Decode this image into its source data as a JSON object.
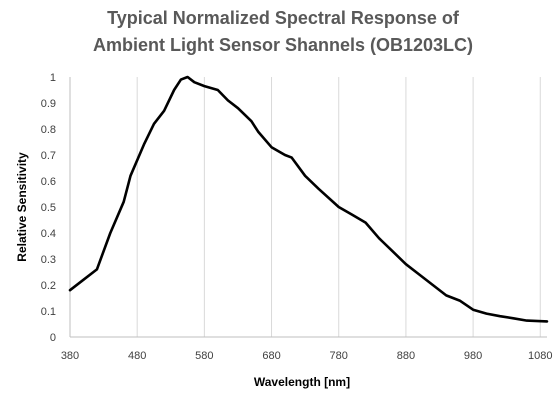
{
  "chart_data": {
    "type": "line",
    "title_lines": [
      "Typical Normalized Spectral Response of",
      "Ambient Light Sensor Shannels (OB1203LC)"
    ],
    "xlabel": "Wavelength [nm]",
    "ylabel": "Relative Sensitivity",
    "xlim": [
      380,
      1090
    ],
    "ylim": [
      0,
      1
    ],
    "x_ticks": [
      380,
      480,
      580,
      680,
      780,
      880,
      980,
      1080
    ],
    "x_tick_labels": [
      "380",
      "480",
      "580",
      "680",
      "780",
      "880",
      "980",
      "1080"
    ],
    "y_ticks": [
      0,
      0.1,
      0.2,
      0.3,
      0.4,
      0.5,
      0.6,
      0.7,
      0.8,
      0.9,
      1
    ],
    "y_tick_labels": [
      "0",
      "0.1",
      "0.2",
      "0.3",
      "0.4",
      "0.5",
      "0.6",
      "0.7",
      "0.8",
      "0.9",
      "1"
    ],
    "grid": {
      "vertical": true,
      "horizontal": false
    },
    "series": [
      {
        "color": "#000000",
        "points": [
          [
            380,
            0.18
          ],
          [
            400,
            0.22
          ],
          [
            420,
            0.26
          ],
          [
            440,
            0.4
          ],
          [
            460,
            0.52
          ],
          [
            470,
            0.62
          ],
          [
            490,
            0.74
          ],
          [
            505,
            0.82
          ],
          [
            520,
            0.87
          ],
          [
            535,
            0.95
          ],
          [
            545,
            0.99
          ],
          [
            555,
            1.0
          ],
          [
            565,
            0.98
          ],
          [
            580,
            0.965
          ],
          [
            600,
            0.95
          ],
          [
            615,
            0.91
          ],
          [
            630,
            0.88
          ],
          [
            650,
            0.83
          ],
          [
            660,
            0.79
          ],
          [
            680,
            0.73
          ],
          [
            700,
            0.7
          ],
          [
            710,
            0.69
          ],
          [
            730,
            0.62
          ],
          [
            750,
            0.57
          ],
          [
            780,
            0.5
          ],
          [
            800,
            0.47
          ],
          [
            820,
            0.44
          ],
          [
            840,
            0.38
          ],
          [
            860,
            0.33
          ],
          [
            880,
            0.28
          ],
          [
            900,
            0.24
          ],
          [
            920,
            0.2
          ],
          [
            940,
            0.16
          ],
          [
            960,
            0.14
          ],
          [
            980,
            0.105
          ],
          [
            1000,
            0.09
          ],
          [
            1020,
            0.08
          ],
          [
            1040,
            0.072
          ],
          [
            1060,
            0.063
          ],
          [
            1090,
            0.06
          ]
        ]
      }
    ]
  }
}
